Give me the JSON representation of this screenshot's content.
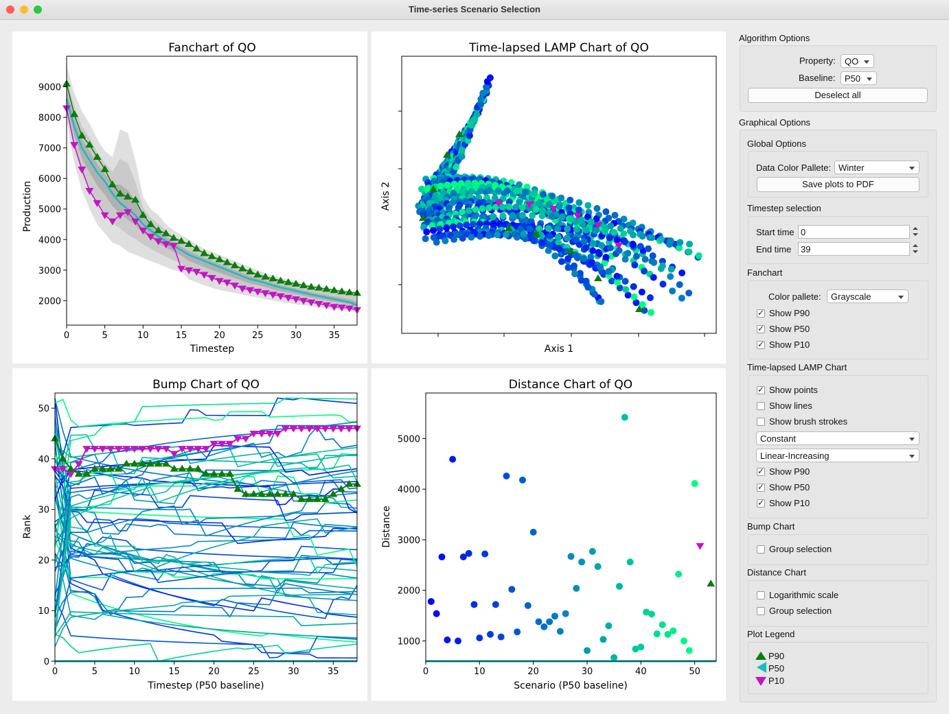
{
  "window": {
    "title": "Time-series Scenario Selection"
  },
  "colors": {
    "p90": "#0a7d0a",
    "p50": "#18bcc4",
    "p10": "#c414c4",
    "winter_low": "#0018ff",
    "winter_high": "#00ff80"
  },
  "charts": {
    "fanchart": {
      "title": "Fanchart of QO",
      "xlabel": "Timestep",
      "ylabel": "Production",
      "xticks": [
        "0",
        "5",
        "10",
        "15",
        "20",
        "25",
        "30",
        "35"
      ],
      "yticks": [
        "2000",
        "3000",
        "4000",
        "5000",
        "6000",
        "7000",
        "8000",
        "9000"
      ]
    },
    "lamp": {
      "title": "Time-lapsed LAMP Chart of QO",
      "xlabel": "Axis 1",
      "ylabel": "Axis 2"
    },
    "bump": {
      "title": "Bump Chart of QO",
      "xlabel": "Timestep (P50 baseline)",
      "ylabel": "Rank",
      "xticks": [
        "0",
        "5",
        "10",
        "15",
        "20",
        "25",
        "30",
        "35"
      ],
      "yticks": [
        "0",
        "10",
        "20",
        "30",
        "40",
        "50"
      ]
    },
    "distance": {
      "title": "Distance Chart of QO",
      "xlabel": "Scenario (P50 baseline)",
      "ylabel": "Distance",
      "xticks": [
        "0",
        "10",
        "20",
        "30",
        "40",
        "50"
      ],
      "yticks": [
        "1000",
        "2000",
        "3000",
        "4000",
        "5000"
      ]
    }
  },
  "chart_data": [
    {
      "type": "line",
      "title": "Fanchart of QO",
      "xlabel": "Timestep",
      "ylabel": "Production",
      "xlim": [
        0,
        38
      ],
      "ylim": [
        1200,
        10000
      ],
      "x": [
        0,
        1,
        2,
        3,
        4,
        5,
        6,
        7,
        8,
        9,
        10,
        11,
        12,
        13,
        14,
        15,
        16,
        17,
        18,
        19,
        20,
        21,
        22,
        23,
        24,
        25,
        26,
        27,
        28,
        29,
        30,
        31,
        32,
        33,
        34,
        35,
        36,
        37,
        38
      ],
      "series": [
        {
          "name": "P90",
          "values": [
            9100,
            8100,
            7400,
            7100,
            6700,
            6300,
            5800,
            5500,
            5400,
            5300,
            4800,
            4500,
            4300,
            4200,
            4050,
            3950,
            3850,
            3700,
            3550,
            3450,
            3350,
            3250,
            3150,
            3050,
            2950,
            2850,
            2780,
            2720,
            2650,
            2600,
            2550,
            2500,
            2450,
            2420,
            2380,
            2340,
            2300,
            2270,
            2250
          ]
        },
        {
          "name": "P50",
          "values": [
            8600,
            7700,
            7000,
            6600,
            6200,
            5900,
            5500,
            5200,
            5000,
            4800,
            4500,
            4300,
            4100,
            3950,
            3800,
            3650,
            3500,
            3400,
            3300,
            3200,
            3100,
            3000,
            2900,
            2800,
            2700,
            2650,
            2580,
            2500,
            2430,
            2380,
            2320,
            2260,
            2200,
            2150,
            2100,
            2050,
            2000,
            1950,
            1850
          ]
        },
        {
          "name": "P10",
          "values": [
            8300,
            7100,
            6300,
            5600,
            5200,
            4800,
            4600,
            4800,
            4900,
            4600,
            4300,
            4100,
            3950,
            3850,
            3800,
            3050,
            3000,
            2950,
            2850,
            2750,
            2650,
            2600,
            2500,
            2400,
            2350,
            2300,
            2250,
            2200,
            2150,
            2100,
            2050,
            2000,
            1950,
            1900,
            1850,
            1800,
            1780,
            1750,
            1700
          ]
        },
        {
          "name": "max envelope",
          "values": [
            9700,
            8800,
            8200,
            7800,
            7300,
            6900,
            6700,
            7600,
            7500,
            6600,
            5400,
            5000,
            4800,
            4500,
            4300,
            4150,
            4000,
            3850,
            3700,
            3600,
            3500,
            3400,
            3300,
            3200,
            3100,
            3000,
            2900,
            2820,
            2750,
            2690,
            2630,
            2570,
            2520,
            2470,
            2430,
            2390,
            2360,
            2330,
            2300
          ]
        },
        {
          "name": "min envelope",
          "values": [
            7900,
            6500,
            5600,
            5000,
            4500,
            4200,
            3900,
            3800,
            3600,
            3500,
            3400,
            3300,
            3200,
            3100,
            3000,
            2950,
            2700,
            2600,
            2500,
            2420,
            2350,
            2300,
            2250,
            2200,
            2150,
            2100,
            2050,
            2000,
            1960,
            1920,
            1880,
            1850,
            1820,
            1790,
            1760,
            1730,
            1700,
            1680,
            1650
          ]
        }
      ]
    },
    {
      "type": "scatter",
      "title": "Distance Chart of QO",
      "xlabel": "Scenario (P50 baseline)",
      "ylabel": "Distance",
      "xlim": [
        0,
        54
      ],
      "ylim": [
        600,
        5900
      ],
      "points": [
        [
          1,
          1780
        ],
        [
          2,
          1540
        ],
        [
          3,
          2660
        ],
        [
          4,
          1020
        ],
        [
          5,
          4590
        ],
        [
          6,
          1000
        ],
        [
          7,
          2660
        ],
        [
          8,
          2730
        ],
        [
          9,
          1720
        ],
        [
          10,
          1060
        ],
        [
          11,
          2720
        ],
        [
          12,
          1130
        ],
        [
          13,
          1720
        ],
        [
          14,
          1080
        ],
        [
          15,
          4260
        ],
        [
          16,
          2020
        ],
        [
          17,
          1180
        ],
        [
          18,
          4180
        ],
        [
          19,
          1700
        ],
        [
          20,
          3150
        ],
        [
          21,
          1380
        ],
        [
          22,
          1280
        ],
        [
          23,
          1380
        ],
        [
          24,
          1490
        ],
        [
          25,
          1190
        ],
        [
          26,
          1540
        ],
        [
          27,
          2670
        ],
        [
          28,
          2040
        ],
        [
          29,
          2560
        ],
        [
          30,
          810
        ],
        [
          31,
          2770
        ],
        [
          32,
          2470
        ],
        [
          33,
          1030
        ],
        [
          34,
          1300
        ],
        [
          35,
          670
        ],
        [
          36,
          2080
        ],
        [
          37,
          5420
        ],
        [
          38,
          2560
        ],
        [
          39,
          840
        ],
        [
          40,
          880
        ],
        [
          41,
          1570
        ],
        [
          42,
          1530
        ],
        [
          43,
          1140
        ],
        [
          44,
          1320
        ],
        [
          45,
          1130
        ],
        [
          46,
          1200
        ],
        [
          47,
          2320
        ],
        [
          48,
          1000
        ],
        [
          49,
          810
        ],
        [
          50,
          4110
        ]
      ],
      "series": [
        {
          "name": "P10",
          "points": [
            [
              51,
              2880
            ]
          ]
        },
        {
          "name": "P90",
          "points": [
            [
              53,
              2130
            ]
          ]
        },
        {
          "name": "P50",
          "points": [
            [
              0,
              600
            ],
            [
              54,
              600
            ]
          ]
        }
      ]
    },
    {
      "type": "line",
      "title": "Bump Chart of QO",
      "xlabel": "Timestep (P50 baseline)",
      "ylabel": "Rank",
      "xlim": [
        0,
        38
      ],
      "ylim": [
        0,
        53
      ],
      "series": [
        {
          "name": "P10",
          "values": [
            38,
            38,
            37,
            39,
            42,
            42,
            42,
            42,
            42,
            42,
            42,
            42,
            42,
            42,
            42,
            41,
            42,
            42,
            42,
            42,
            43,
            43,
            43,
            44,
            44,
            45,
            45,
            45,
            45,
            46,
            46,
            46,
            46,
            46,
            46,
            46,
            46,
            46,
            46
          ]
        },
        {
          "name": "P90",
          "values": [
            44,
            40,
            38,
            37,
            37,
            38,
            38,
            38,
            38,
            39,
            39,
            39,
            39,
            39,
            39,
            38,
            38,
            38,
            38,
            37,
            37,
            37,
            37,
            34,
            33,
            33,
            33,
            33,
            33,
            33,
            33,
            32,
            32,
            32,
            32,
            33,
            34,
            35,
            35
          ]
        }
      ]
    }
  ],
  "sidebar": {
    "algorithm": {
      "title": "Algorithm Options",
      "property_label": "Property:",
      "property_value": "QO",
      "baseline_label": "Baseline:",
      "baseline_value": "P50",
      "deselect_label": "Deselect all"
    },
    "graphical": {
      "title": "Graphical Options",
      "global": {
        "title": "Global Options",
        "palette_label": "Data Color Pallete:",
        "palette_value": "Winter",
        "save_label": "Save plots to PDF"
      },
      "timestep": {
        "title": "Timestep selection",
        "start_label": "Start time",
        "start_value": "0",
        "end_label": "End time",
        "end_value": "39"
      },
      "fanchart": {
        "title": "Fanchart",
        "palette_label": "Color pallete:",
        "palette_value": "Grayscale",
        "p90": "Show P90",
        "p50": "Show P50",
        "p10": "Show P10"
      },
      "lamp": {
        "title": "Time-lapsed LAMP Chart",
        "points": "Show points",
        "lines": "Show lines",
        "brush": "Show brush strokes",
        "combo1": "Constant",
        "combo2": "Linear-Increasing",
        "p90": "Show P90",
        "p50": "Show P50",
        "p10": "Show P10"
      },
      "bump": {
        "title": "Bump Chart",
        "group": "Group selection"
      },
      "distance": {
        "title": "Distance Chart",
        "log": "Logarithmic scale",
        "group": "Group selection"
      },
      "legend": {
        "title": "Plot Legend",
        "p90": "P90",
        "p50": "P50",
        "p10": "P10"
      }
    }
  }
}
